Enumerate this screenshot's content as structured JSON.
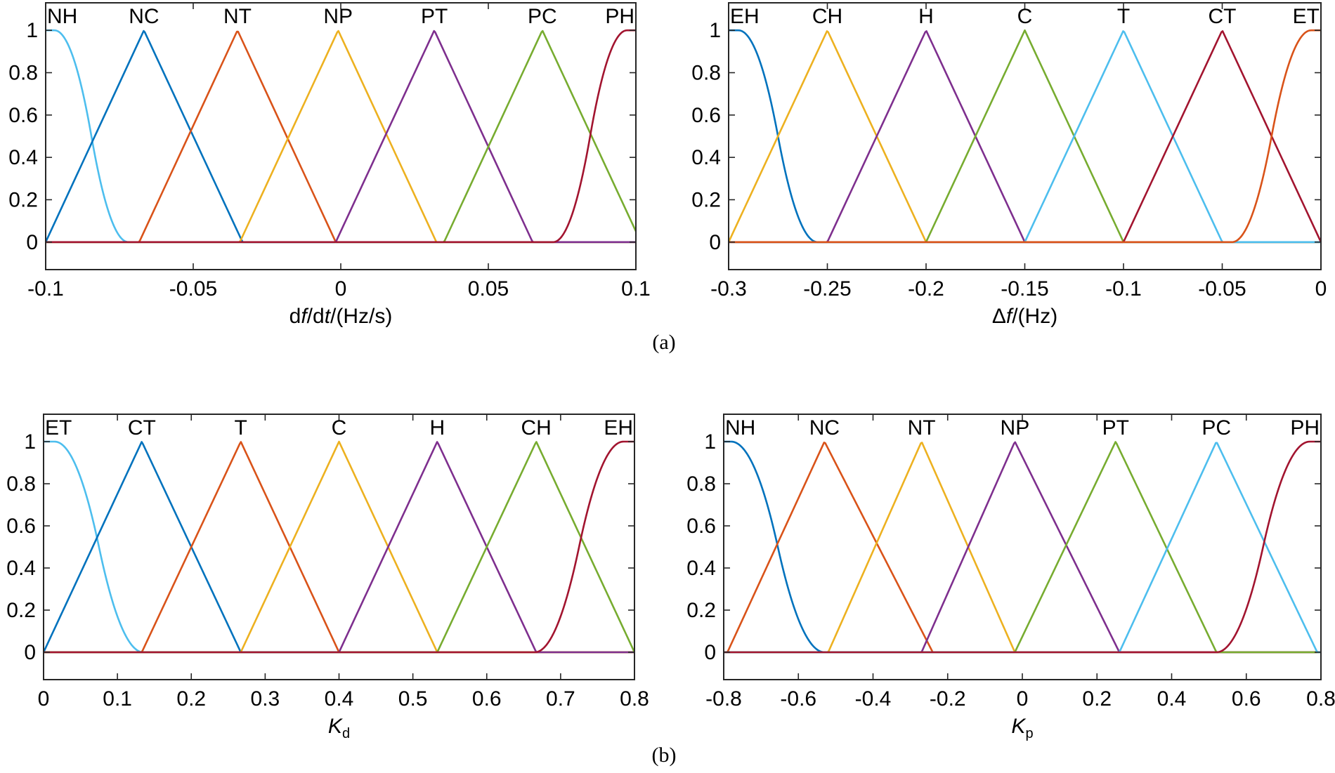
{
  "figure_labels": {
    "a": "(a)",
    "b": "(b)"
  },
  "chart_data": [
    {
      "type": "line",
      "id": "a-left",
      "xlabel_parts": [
        {
          "t": "d",
          "italic": false
        },
        {
          "t": "f",
          "italic": true
        },
        {
          "t": "/d",
          "italic": false
        },
        {
          "t": "t",
          "italic": true
        },
        {
          "t": "/(Hz/s)",
          "italic": false
        }
      ],
      "xlim": [
        -0.1,
        0.1
      ],
      "ylim": [
        -0.13,
        1.13
      ],
      "xticks": [
        -0.1,
        -0.05,
        0,
        0.05,
        0.1
      ],
      "xtick_labels": [
        "-0.1",
        "-0.05",
        "0",
        "0.05",
        "0.1"
      ],
      "yticks": [
        0,
        0.2,
        0.4,
        0.6,
        0.8,
        1
      ],
      "ytick_labels": [
        "0",
        "0.2",
        "0.4",
        "0.6",
        "0.8",
        "1"
      ],
      "series": [
        {
          "name": "NH",
          "shape": "zmf",
          "params": [
            -0.097,
            -0.072
          ],
          "color": "#4DBEEE"
        },
        {
          "name": "NC",
          "shape": "trimf",
          "params": [
            -0.1,
            -0.0667,
            -0.0333
          ],
          "color": "#0072BD"
        },
        {
          "name": "NT",
          "shape": "trimf",
          "params": [
            -0.0683,
            -0.035,
            -0.0017
          ],
          "color": "#D95319"
        },
        {
          "name": "NP",
          "shape": "trimf",
          "params": [
            -0.0342,
            -0.0009,
            0.0324
          ],
          "color": "#EDB120"
        },
        {
          "name": "PT",
          "shape": "trimf",
          "params": [
            -0.0017,
            0.0317,
            0.065
          ],
          "color": "#7E2F8E"
        },
        {
          "name": "PC",
          "shape": "trimf",
          "params": [
            0.035,
            0.0683,
            0.1017
          ],
          "color": "#77AC30"
        },
        {
          "name": "PH",
          "shape": "smf",
          "params": [
            0.072,
            0.097
          ],
          "color": "#A2142F"
        }
      ]
    },
    {
      "type": "line",
      "id": "a-right",
      "xlabel_parts": [
        {
          "t": "Δ",
          "italic": false
        },
        {
          "t": "f",
          "italic": true
        },
        {
          "t": "/(Hz)",
          "italic": false
        }
      ],
      "xlim": [
        -0.3,
        0
      ],
      "ylim": [
        -0.13,
        1.13
      ],
      "xticks": [
        -0.3,
        -0.25,
        -0.2,
        -0.15,
        -0.1,
        -0.05,
        0
      ],
      "xtick_labels": [
        "-0.3",
        "-0.25",
        "-0.2",
        "-0.15",
        "-0.1",
        "-0.05",
        "0"
      ],
      "yticks": [
        0,
        0.2,
        0.4,
        0.6,
        0.8,
        1
      ],
      "ytick_labels": [
        "0",
        "0.2",
        "0.4",
        "0.6",
        "0.8",
        "1"
      ],
      "series": [
        {
          "name": "EH",
          "shape": "zmf",
          "params": [
            -0.295,
            -0.255
          ],
          "color": "#0072BD"
        },
        {
          "name": "CH",
          "shape": "trimf",
          "params": [
            -0.3,
            -0.25,
            -0.2
          ],
          "color": "#EDB120"
        },
        {
          "name": "H",
          "shape": "trimf",
          "params": [
            -0.25,
            -0.2,
            -0.15
          ],
          "color": "#7E2F8E"
        },
        {
          "name": "C",
          "shape": "trimf",
          "params": [
            -0.2,
            -0.15,
            -0.1
          ],
          "color": "#77AC30"
        },
        {
          "name": "T",
          "shape": "trimf",
          "params": [
            -0.15,
            -0.1,
            -0.05
          ],
          "color": "#4DBEEE"
        },
        {
          "name": "CT",
          "shape": "trimf",
          "params": [
            -0.1,
            -0.05,
            0
          ],
          "color": "#A2142F"
        },
        {
          "name": "ET",
          "shape": "smf",
          "params": [
            -0.045,
            -0.005
          ],
          "color": "#D95319"
        }
      ]
    },
    {
      "type": "line",
      "id": "b-left",
      "xlabel_parts": [
        {
          "t": "K",
          "italic": true
        },
        {
          "t": "d",
          "italic": false,
          "sub": true
        }
      ],
      "xlim": [
        0,
        0.8
      ],
      "ylim": [
        -0.13,
        1.13
      ],
      "xticks": [
        0,
        0.1,
        0.2,
        0.3,
        0.4,
        0.5,
        0.6,
        0.7,
        0.8
      ],
      "xtick_labels": [
        "0",
        "0.1",
        "0.2",
        "0.3",
        "0.4",
        "0.5",
        "0.6",
        "0.7",
        "0.8"
      ],
      "yticks": [
        0,
        0.2,
        0.4,
        0.6,
        0.8,
        1
      ],
      "ytick_labels": [
        "0",
        "0.2",
        "0.4",
        "0.6",
        "0.8",
        "1"
      ],
      "series": [
        {
          "name": "ET",
          "shape": "zmf",
          "params": [
            0.015,
            0.135
          ],
          "color": "#4DBEEE"
        },
        {
          "name": "CT",
          "shape": "trimf",
          "params": [
            0,
            0.133,
            0.267
          ],
          "color": "#0072BD"
        },
        {
          "name": "T",
          "shape": "trimf",
          "params": [
            0.133,
            0.267,
            0.4
          ],
          "color": "#D95319"
        },
        {
          "name": "C",
          "shape": "trimf",
          "params": [
            0.267,
            0.4,
            0.533
          ],
          "color": "#EDB120"
        },
        {
          "name": "H",
          "shape": "trimf",
          "params": [
            0.4,
            0.533,
            0.667
          ],
          "color": "#7E2F8E"
        },
        {
          "name": "CH",
          "shape": "trimf",
          "params": [
            0.533,
            0.667,
            0.8
          ],
          "color": "#77AC30"
        },
        {
          "name": "EH",
          "shape": "smf",
          "params": [
            0.665,
            0.785
          ],
          "color": "#A2142F"
        }
      ]
    },
    {
      "type": "line",
      "id": "b-right",
      "xlabel_parts": [
        {
          "t": "K",
          "italic": true
        },
        {
          "t": "p",
          "italic": false,
          "sub": true
        }
      ],
      "xlim": [
        -0.8,
        0.8
      ],
      "ylim": [
        -0.13,
        1.13
      ],
      "xticks": [
        -0.8,
        -0.6,
        -0.4,
        -0.2,
        0,
        0.2,
        0.4,
        0.6,
        0.8
      ],
      "xtick_labels": [
        "-0.8",
        "-0.6",
        "-0.4",
        "-0.2",
        "0",
        "0.2",
        "0.4",
        "0.6",
        "0.8"
      ],
      "yticks": [
        0,
        0.2,
        0.4,
        0.6,
        0.8,
        1
      ],
      "ytick_labels": [
        "0",
        "0.2",
        "0.4",
        "0.6",
        "0.8",
        "1"
      ],
      "series": [
        {
          "name": "NH",
          "shape": "zmf",
          "params": [
            -0.78,
            -0.53
          ],
          "color": "#0072BD"
        },
        {
          "name": "NC",
          "shape": "trimf",
          "params": [
            -0.79,
            -0.53,
            -0.24
          ],
          "color": "#D95319"
        },
        {
          "name": "NT",
          "shape": "trimf",
          "params": [
            -0.52,
            -0.27,
            -0.02
          ],
          "color": "#EDB120"
        },
        {
          "name": "NP",
          "shape": "trimf",
          "params": [
            -0.27,
            -0.02,
            0.26
          ],
          "color": "#7E2F8E"
        },
        {
          "name": "PT",
          "shape": "trimf",
          "params": [
            -0.02,
            0.25,
            0.52
          ],
          "color": "#77AC30"
        },
        {
          "name": "PC",
          "shape": "trimf",
          "params": [
            0.26,
            0.52,
            0.79
          ],
          "color": "#4DBEEE"
        },
        {
          "name": "PH",
          "shape": "smf",
          "params": [
            0.52,
            0.77
          ],
          "color": "#A2142F"
        }
      ]
    }
  ]
}
